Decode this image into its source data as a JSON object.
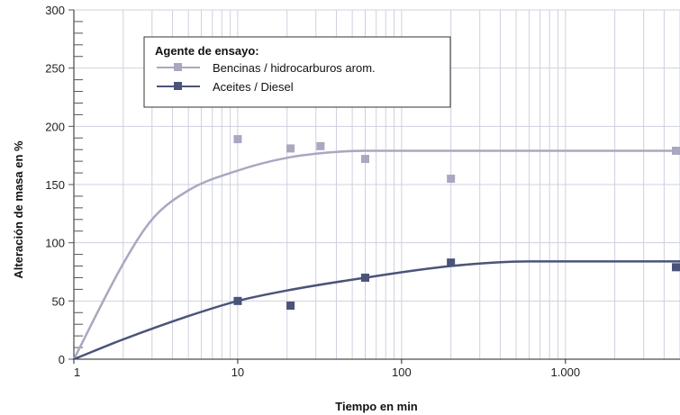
{
  "chart_data": {
    "type": "scatter",
    "xscale": "log",
    "xlim": [
      1,
      5000
    ],
    "ylim": [
      0,
      300
    ],
    "xticks": [
      {
        "value": 1,
        "label": "1"
      },
      {
        "value": 10,
        "label": "10"
      },
      {
        "value": 100,
        "label": "100"
      },
      {
        "value": 1000,
        "label": "1.000"
      }
    ],
    "yticks": [
      {
        "value": 0,
        "label": "0"
      },
      {
        "value": 50,
        "label": "50"
      },
      {
        "value": 100,
        "label": "100"
      },
      {
        "value": 150,
        "label": "150"
      },
      {
        "value": 200,
        "label": "200"
      },
      {
        "value": 250,
        "label": "250"
      },
      {
        "value": 300,
        "label": "300"
      }
    ],
    "xlabel": "Tiempo en min",
    "ylabel": "Alteración de masa en %",
    "grid": true,
    "legend": {
      "title": "Agente de ensayo:",
      "placement": "top-left"
    },
    "series": [
      {
        "name": "Bencinas / hidrocarburos arom.",
        "color": "#a9a8c0",
        "points": [
          {
            "x": 10,
            "y": 189
          },
          {
            "x": 21,
            "y": 181
          },
          {
            "x": 32,
            "y": 183
          },
          {
            "x": 60,
            "y": 172
          },
          {
            "x": 200,
            "y": 155
          },
          {
            "x": 5000,
            "y": 179
          }
        ],
        "curve": [
          {
            "x": 1,
            "y": 0
          },
          {
            "x": 2,
            "y": 82
          },
          {
            "x": 3,
            "y": 120
          },
          {
            "x": 5,
            "y": 145
          },
          {
            "x": 10,
            "y": 162
          },
          {
            "x": 20,
            "y": 173
          },
          {
            "x": 40,
            "y": 178
          },
          {
            "x": 60,
            "y": 179
          },
          {
            "x": 5000,
            "y": 179
          }
        ]
      },
      {
        "name": "Aceites / Diesel",
        "color": "#4a5479",
        "points": [
          {
            "x": 10,
            "y": 50
          },
          {
            "x": 21,
            "y": 46
          },
          {
            "x": 60,
            "y": 70
          },
          {
            "x": 200,
            "y": 83
          },
          {
            "x": 5000,
            "y": 79
          }
        ],
        "curve": [
          {
            "x": 1,
            "y": 0
          },
          {
            "x": 2,
            "y": 17
          },
          {
            "x": 5,
            "y": 37
          },
          {
            "x": 10,
            "y": 50
          },
          {
            "x": 20,
            "y": 59
          },
          {
            "x": 60,
            "y": 70
          },
          {
            "x": 200,
            "y": 80
          },
          {
            "x": 600,
            "y": 84
          },
          {
            "x": 5000,
            "y": 84
          }
        ]
      }
    ]
  }
}
